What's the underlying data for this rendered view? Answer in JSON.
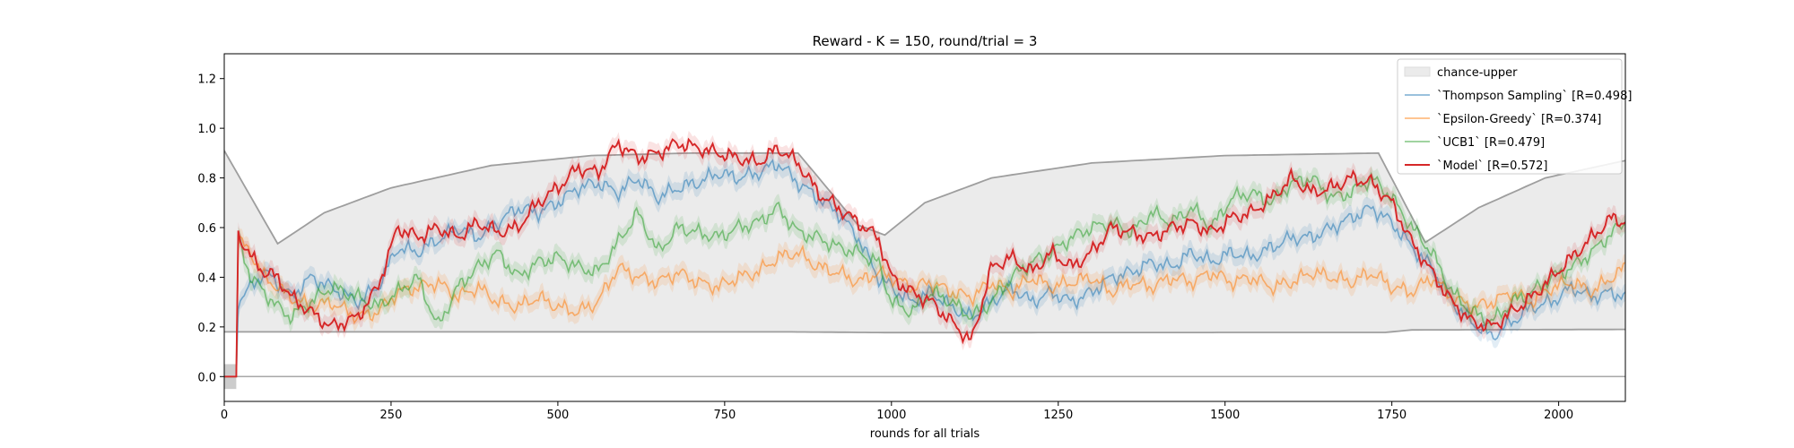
{
  "chart_data": {
    "type": "line",
    "title": "Reward - K = 150, round/trial = 3",
    "xlabel": "rounds for all trials",
    "ylabel": "",
    "xlim": [
      0,
      2100
    ],
    "ylim": [
      -0.1,
      1.3
    ],
    "xticks": [
      0,
      250,
      500,
      750,
      1000,
      1250,
      1500,
      1750,
      2000
    ],
    "yticks": [
      0.0,
      0.2,
      0.4,
      0.6,
      0.8,
      1.0,
      1.2
    ],
    "grid": false,
    "legend_position": "top-right",
    "chance_band": {
      "name": "chance-upper",
      "color": "#d9d9d9",
      "lower": [
        [
          0,
          0.18
        ],
        [
          850,
          0.18
        ],
        [
          1000,
          0.177
        ],
        [
          1740,
          0.178
        ],
        [
          1780,
          0.188
        ],
        [
          2100,
          0.19
        ]
      ],
      "upper": [
        [
          0,
          0.91
        ],
        [
          80,
          0.535
        ],
        [
          150,
          0.66
        ],
        [
          250,
          0.76
        ],
        [
          400,
          0.85
        ],
        [
          550,
          0.89
        ],
        [
          700,
          0.9
        ],
        [
          860,
          0.9
        ],
        [
          950,
          0.61
        ],
        [
          990,
          0.57
        ],
        [
          1050,
          0.7
        ],
        [
          1150,
          0.8
        ],
        [
          1300,
          0.86
        ],
        [
          1500,
          0.89
        ],
        [
          1730,
          0.9
        ],
        [
          1800,
          0.54
        ],
        [
          1880,
          0.68
        ],
        [
          1980,
          0.8
        ],
        [
          2100,
          0.87
        ]
      ]
    },
    "zero_line": 0.0,
    "series": [
      {
        "name": "`Thompson Sampling` [R=0.498]",
        "color": "#1f77b4",
        "x": [
          0,
          18,
          20,
          40,
          60,
          80,
          100,
          130,
          160,
          200,
          230,
          260,
          290,
          320,
          350,
          380,
          410,
          440,
          470,
          500,
          530,
          560,
          590,
          620,
          650,
          680,
          710,
          740,
          770,
          800,
          830,
          860,
          890,
          920,
          950,
          980,
          1000,
          1030,
          1060,
          1090,
          1120,
          1150,
          1180,
          1210,
          1240,
          1270,
          1300,
          1330,
          1360,
          1390,
          1420,
          1450,
          1480,
          1510,
          1540,
          1570,
          1600,
          1630,
          1660,
          1690,
          1720,
          1750,
          1780,
          1810,
          1840,
          1870,
          1900,
          1930,
          1960,
          1990,
          2020,
          2050,
          2080,
          2100
        ],
        "values": [
          0,
          0,
          0.3,
          0.36,
          0.42,
          0.38,
          0.32,
          0.4,
          0.36,
          0.3,
          0.36,
          0.52,
          0.5,
          0.55,
          0.6,
          0.56,
          0.62,
          0.68,
          0.66,
          0.7,
          0.76,
          0.78,
          0.74,
          0.8,
          0.72,
          0.76,
          0.78,
          0.82,
          0.8,
          0.82,
          0.86,
          0.78,
          0.72,
          0.66,
          0.56,
          0.4,
          0.36,
          0.3,
          0.34,
          0.28,
          0.24,
          0.3,
          0.36,
          0.3,
          0.34,
          0.3,
          0.34,
          0.4,
          0.42,
          0.46,
          0.44,
          0.5,
          0.46,
          0.5,
          0.48,
          0.52,
          0.56,
          0.56,
          0.6,
          0.64,
          0.68,
          0.62,
          0.52,
          0.44,
          0.3,
          0.22,
          0.16,
          0.22,
          0.28,
          0.3,
          0.36,
          0.32,
          0.34,
          0.32
        ]
      },
      {
        "name": "`Epsilon-Greedy` [R=0.374]",
        "color": "#ff7f0e",
        "x": [
          0,
          18,
          20,
          40,
          60,
          80,
          100,
          130,
          160,
          200,
          230,
          260,
          290,
          320,
          350,
          380,
          410,
          440,
          470,
          500,
          530,
          560,
          590,
          620,
          650,
          680,
          710,
          740,
          770,
          800,
          830,
          860,
          890,
          920,
          950,
          980,
          1000,
          1030,
          1060,
          1090,
          1120,
          1150,
          1180,
          1210,
          1240,
          1270,
          1300,
          1330,
          1360,
          1390,
          1420,
          1450,
          1480,
          1510,
          1540,
          1570,
          1600,
          1630,
          1660,
          1690,
          1720,
          1750,
          1780,
          1810,
          1840,
          1870,
          1900,
          1930,
          1960,
          1990,
          2020,
          2050,
          2080,
          2100
        ],
        "values": [
          0,
          0,
          0.55,
          0.5,
          0.4,
          0.36,
          0.32,
          0.28,
          0.3,
          0.24,
          0.26,
          0.34,
          0.36,
          0.38,
          0.32,
          0.36,
          0.3,
          0.28,
          0.32,
          0.28,
          0.26,
          0.3,
          0.44,
          0.4,
          0.38,
          0.42,
          0.38,
          0.36,
          0.4,
          0.42,
          0.48,
          0.5,
          0.44,
          0.42,
          0.38,
          0.42,
          0.4,
          0.36,
          0.38,
          0.34,
          0.32,
          0.38,
          0.34,
          0.4,
          0.36,
          0.38,
          0.4,
          0.34,
          0.38,
          0.36,
          0.4,
          0.38,
          0.42,
          0.38,
          0.4,
          0.36,
          0.38,
          0.42,
          0.4,
          0.38,
          0.42,
          0.36,
          0.34,
          0.4,
          0.32,
          0.28,
          0.3,
          0.34,
          0.3,
          0.36,
          0.38,
          0.34,
          0.4,
          0.44
        ]
      },
      {
        "name": "`UCB1` [R=0.479]",
        "color": "#2ca02c",
        "x": [
          0,
          18,
          20,
          40,
          60,
          80,
          100,
          130,
          160,
          200,
          230,
          260,
          290,
          320,
          350,
          380,
          410,
          440,
          470,
          500,
          530,
          560,
          590,
          620,
          650,
          680,
          710,
          740,
          770,
          800,
          830,
          860,
          890,
          920,
          950,
          980,
          1000,
          1030,
          1060,
          1090,
          1120,
          1150,
          1180,
          1210,
          1240,
          1270,
          1300,
          1330,
          1360,
          1390,
          1420,
          1450,
          1480,
          1510,
          1540,
          1570,
          1600,
          1630,
          1660,
          1690,
          1720,
          1750,
          1780,
          1810,
          1840,
          1870,
          1900,
          1930,
          1960,
          1990,
          2020,
          2050,
          2080,
          2100
        ],
        "values": [
          0,
          0,
          0.56,
          0.4,
          0.34,
          0.28,
          0.24,
          0.3,
          0.36,
          0.32,
          0.28,
          0.34,
          0.4,
          0.2,
          0.36,
          0.44,
          0.5,
          0.4,
          0.46,
          0.48,
          0.44,
          0.42,
          0.54,
          0.66,
          0.5,
          0.6,
          0.58,
          0.56,
          0.6,
          0.62,
          0.68,
          0.58,
          0.56,
          0.52,
          0.5,
          0.46,
          0.3,
          0.26,
          0.34,
          0.3,
          0.24,
          0.3,
          0.4,
          0.46,
          0.5,
          0.56,
          0.6,
          0.62,
          0.58,
          0.66,
          0.62,
          0.68,
          0.6,
          0.72,
          0.74,
          0.7,
          0.78,
          0.8,
          0.72,
          0.74,
          0.8,
          0.72,
          0.6,
          0.5,
          0.34,
          0.26,
          0.22,
          0.3,
          0.34,
          0.4,
          0.44,
          0.5,
          0.58,
          0.62
        ]
      },
      {
        "name": "`Model` [R=0.572]",
        "color": "#d62728",
        "x": [
          0,
          18,
          20,
          40,
          60,
          80,
          100,
          130,
          160,
          200,
          230,
          260,
          290,
          320,
          350,
          380,
          410,
          440,
          470,
          500,
          530,
          560,
          590,
          620,
          650,
          680,
          710,
          740,
          770,
          800,
          830,
          860,
          890,
          920,
          950,
          980,
          1000,
          1030,
          1060,
          1090,
          1120,
          1150,
          1180,
          1210,
          1240,
          1270,
          1300,
          1330,
          1360,
          1390,
          1420,
          1450,
          1480,
          1510,
          1540,
          1570,
          1600,
          1630,
          1660,
          1690,
          1720,
          1750,
          1780,
          1810,
          1840,
          1870,
          1900,
          1930,
          1960,
          1990,
          2020,
          2050,
          2080,
          2100
        ],
        "values": [
          0,
          0,
          0.58,
          0.48,
          0.42,
          0.4,
          0.32,
          0.26,
          0.2,
          0.24,
          0.36,
          0.6,
          0.56,
          0.6,
          0.56,
          0.62,
          0.58,
          0.6,
          0.7,
          0.76,
          0.84,
          0.82,
          0.94,
          0.88,
          0.9,
          0.94,
          0.92,
          0.9,
          0.88,
          0.86,
          0.92,
          0.86,
          0.74,
          0.68,
          0.62,
          0.56,
          0.4,
          0.34,
          0.3,
          0.22,
          0.14,
          0.44,
          0.48,
          0.42,
          0.5,
          0.44,
          0.5,
          0.6,
          0.58,
          0.56,
          0.6,
          0.62,
          0.58,
          0.64,
          0.66,
          0.72,
          0.8,
          0.74,
          0.76,
          0.8,
          0.78,
          0.7,
          0.54,
          0.42,
          0.3,
          0.22,
          0.2,
          0.26,
          0.32,
          0.4,
          0.48,
          0.56,
          0.64,
          0.62
        ]
      }
    ],
    "legend_patch_label": "chance-upper"
  }
}
